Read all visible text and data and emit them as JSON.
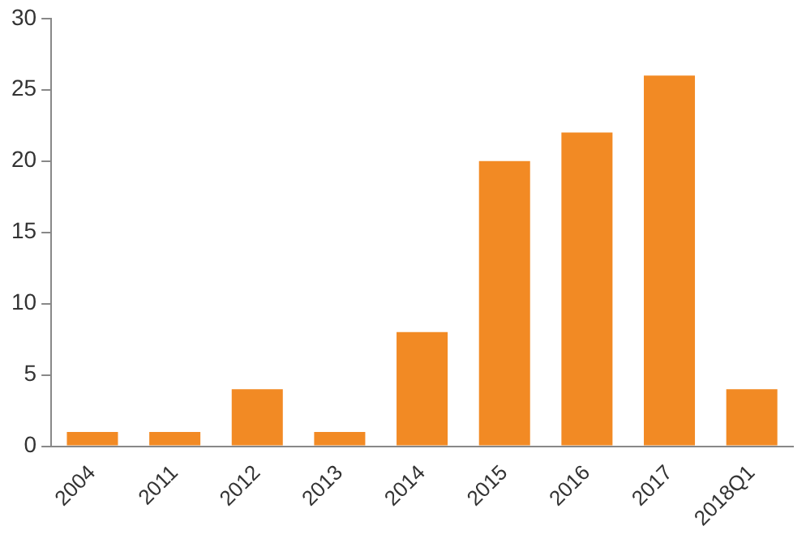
{
  "chart_data": {
    "type": "bar",
    "categories": [
      "2004",
      "2011",
      "2012",
      "2013",
      "2014",
      "2015",
      "2016",
      "2017",
      "2018Q1"
    ],
    "values": [
      1,
      1,
      4,
      1,
      8,
      20,
      22,
      26,
      4
    ],
    "color": "#f28a24",
    "ylim": [
      0,
      30
    ],
    "yticks": [
      0,
      5,
      10,
      15,
      20,
      25,
      30
    ],
    "grid": false,
    "legend": false
  }
}
